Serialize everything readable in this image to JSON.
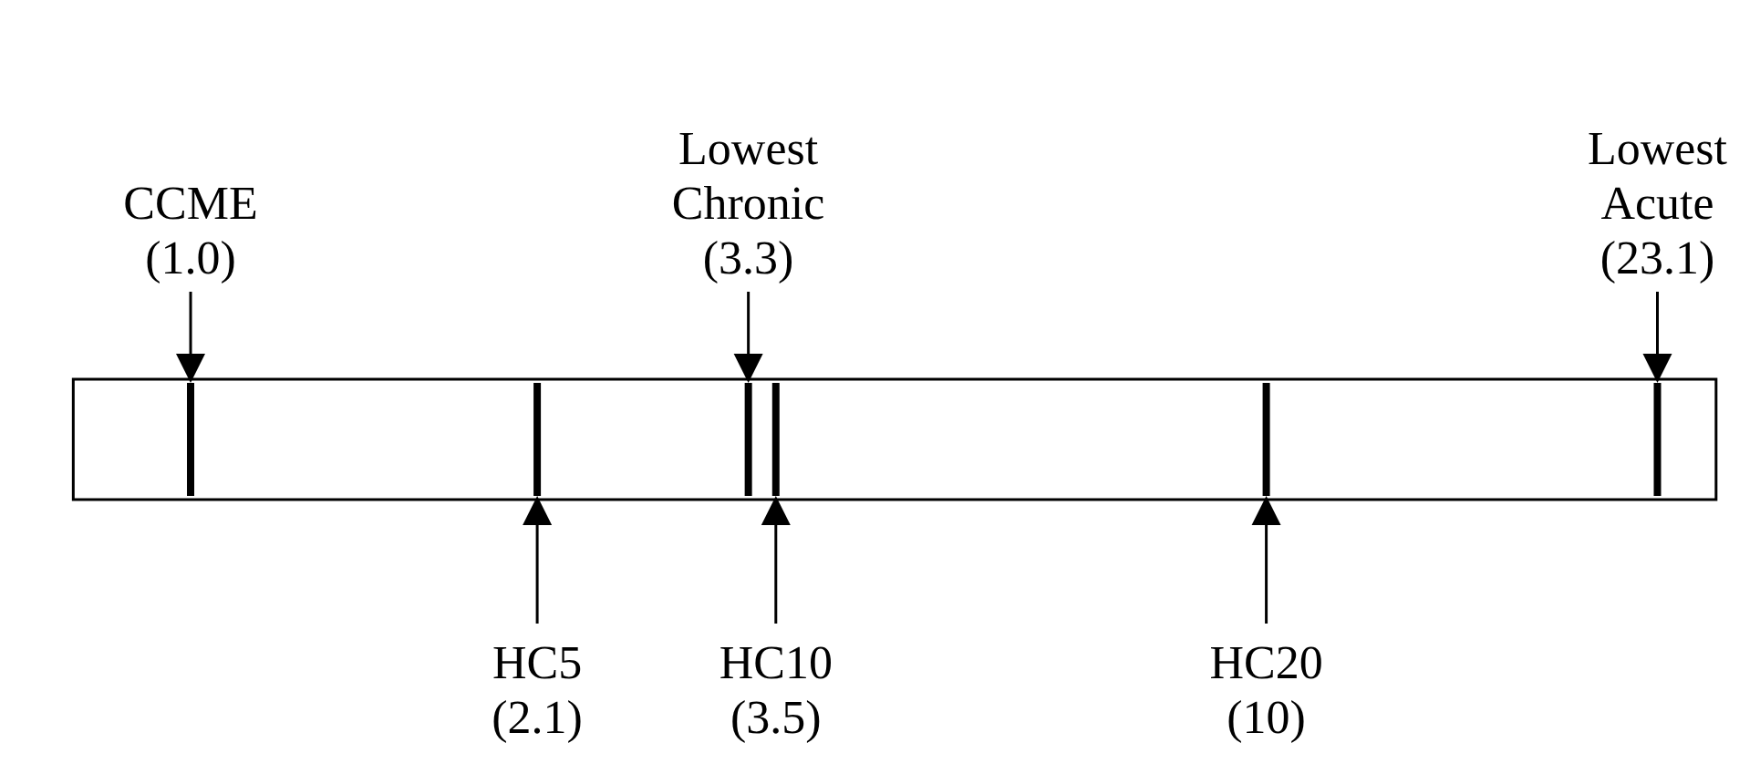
{
  "chart_data": {
    "type": "other",
    "categories": [
      "CCME",
      "HC5",
      "Lowest Chronic",
      "HC10",
      "HC20",
      "Lowest Acute"
    ],
    "series": [
      {
        "color": "#000000",
        "values": [
          1.0,
          null,
          3.3,
          null,
          null,
          23.1
        ],
        "value_labels": [
          "(1.0)",
          null,
          "(3.3)",
          null,
          null,
          "(23.1)"
        ]
      },
      {
        "color": "#000000",
        "values": [
          null,
          2.1,
          null,
          3.5,
          10,
          null
        ],
        "value_labels": [
          null,
          "(2.1)",
          null,
          "(3.5)",
          "(10)",
          null
        ]
      }
    ]
  }
}
